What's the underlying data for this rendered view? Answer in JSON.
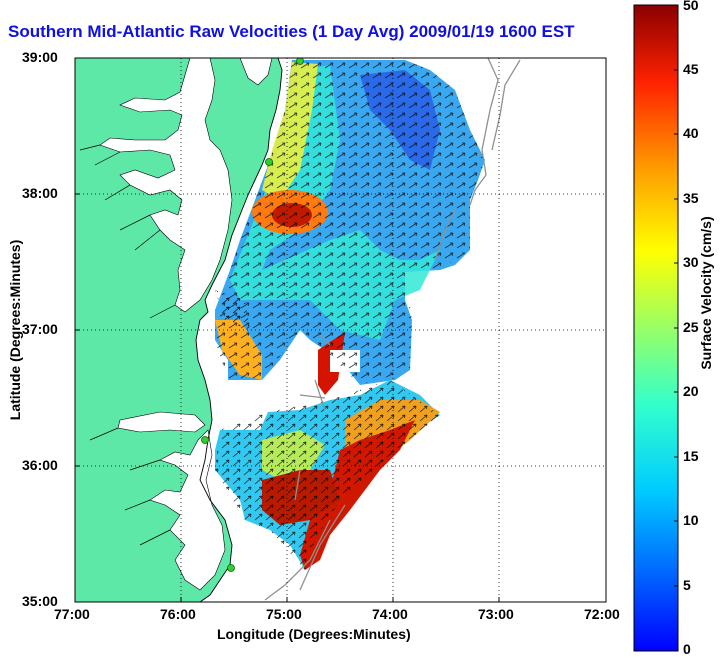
{
  "title": "Southern Mid-Atlantic Raw Velocities (1 Day Avg) 2009/01/19 1600 EST",
  "x_axis": {
    "label": "Longitude (Degrees:Minutes)",
    "ticks": [
      "77:00",
      "76:00",
      "75:00",
      "74:00",
      "73:00",
      "72:00"
    ]
  },
  "y_axis": {
    "label": "Latitude (Degrees:Minutes)",
    "ticks": [
      "39:00",
      "38:00",
      "37:00",
      "36:00",
      "35:00"
    ]
  },
  "colorbar": {
    "label": "Surface Velocity (cm/s)",
    "ticks": [
      "50",
      "45",
      "40",
      "35",
      "30",
      "25",
      "20",
      "15",
      "10",
      "5",
      "0"
    ],
    "range": [
      0,
      50
    ]
  },
  "colors": {
    "land": "#5ee8a8",
    "title": "#1010e0",
    "station": "#33cc33"
  }
}
